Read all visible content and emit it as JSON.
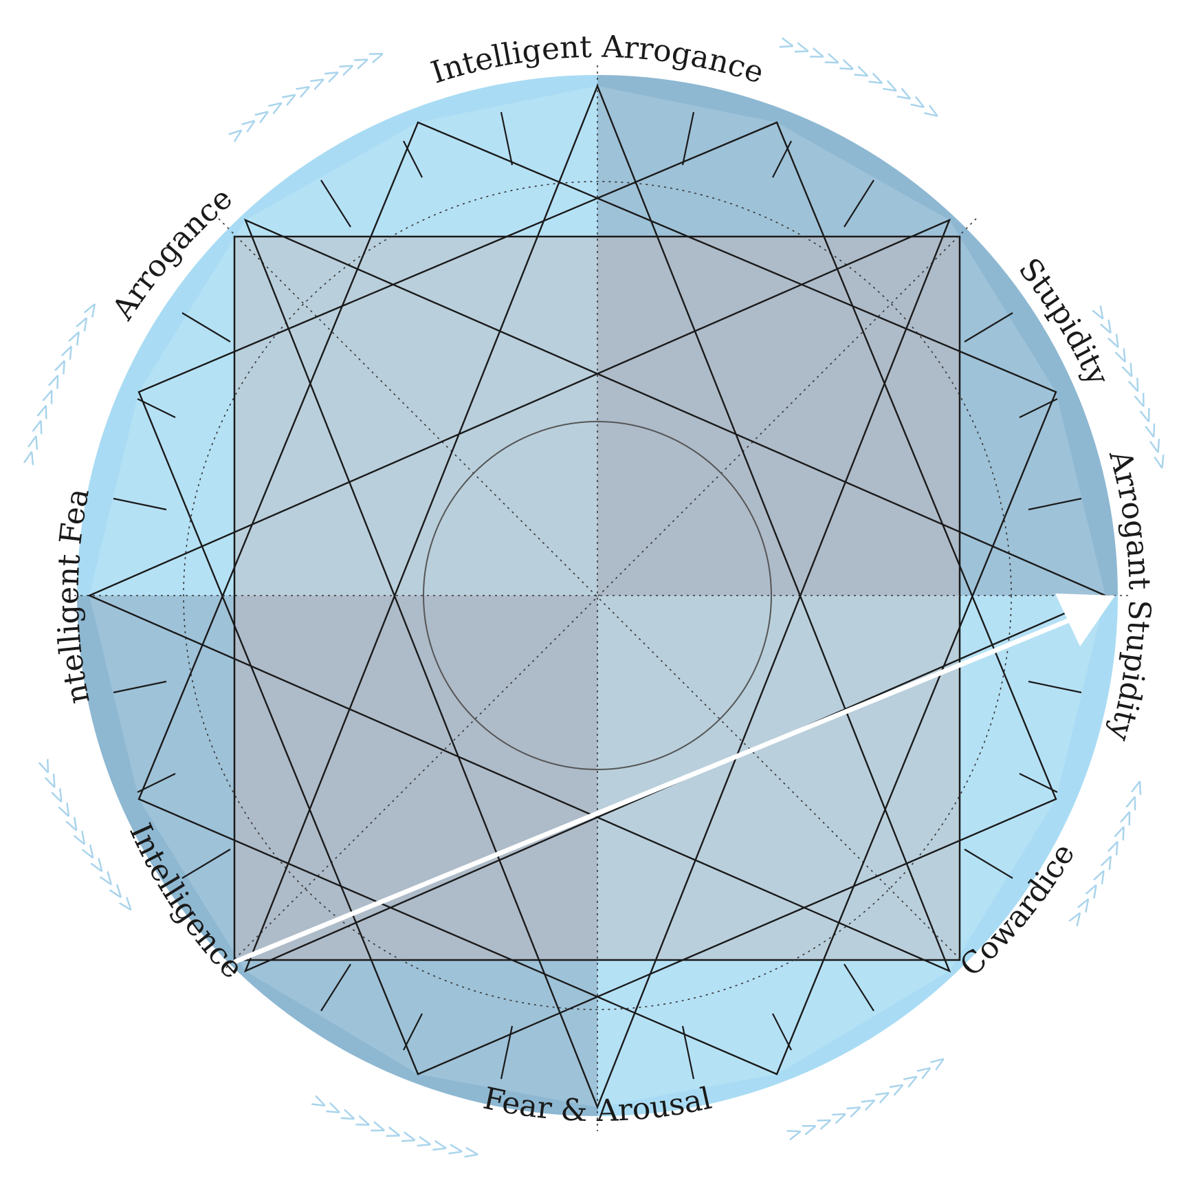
{
  "labels": {
    "top": "Intelligent Arrogance",
    "top_right": "Stupidity",
    "right": "Arrogant Stupidity",
    "bottom_right": "Cowardice",
    "bottom": "Fear & Arousal",
    "bottom_left": "Intelligence",
    "left": "Intelligent Fear",
    "top_left": "Arrogance"
  },
  "arrow_marks": {
    "clockwise": ">>>>>>>>>>>",
    "counterclockwise": "<<<<<<<<<<<"
  },
  "colors": {
    "outer_light": "#a9dcf4",
    "outer_dark": "#8eb8d2",
    "inner_light": "#b9cfdc",
    "inner_dark": "#aebbc9",
    "line": "#1a1a1a",
    "arrow": "#ffffff",
    "chevron": "#a9d4ec"
  }
}
